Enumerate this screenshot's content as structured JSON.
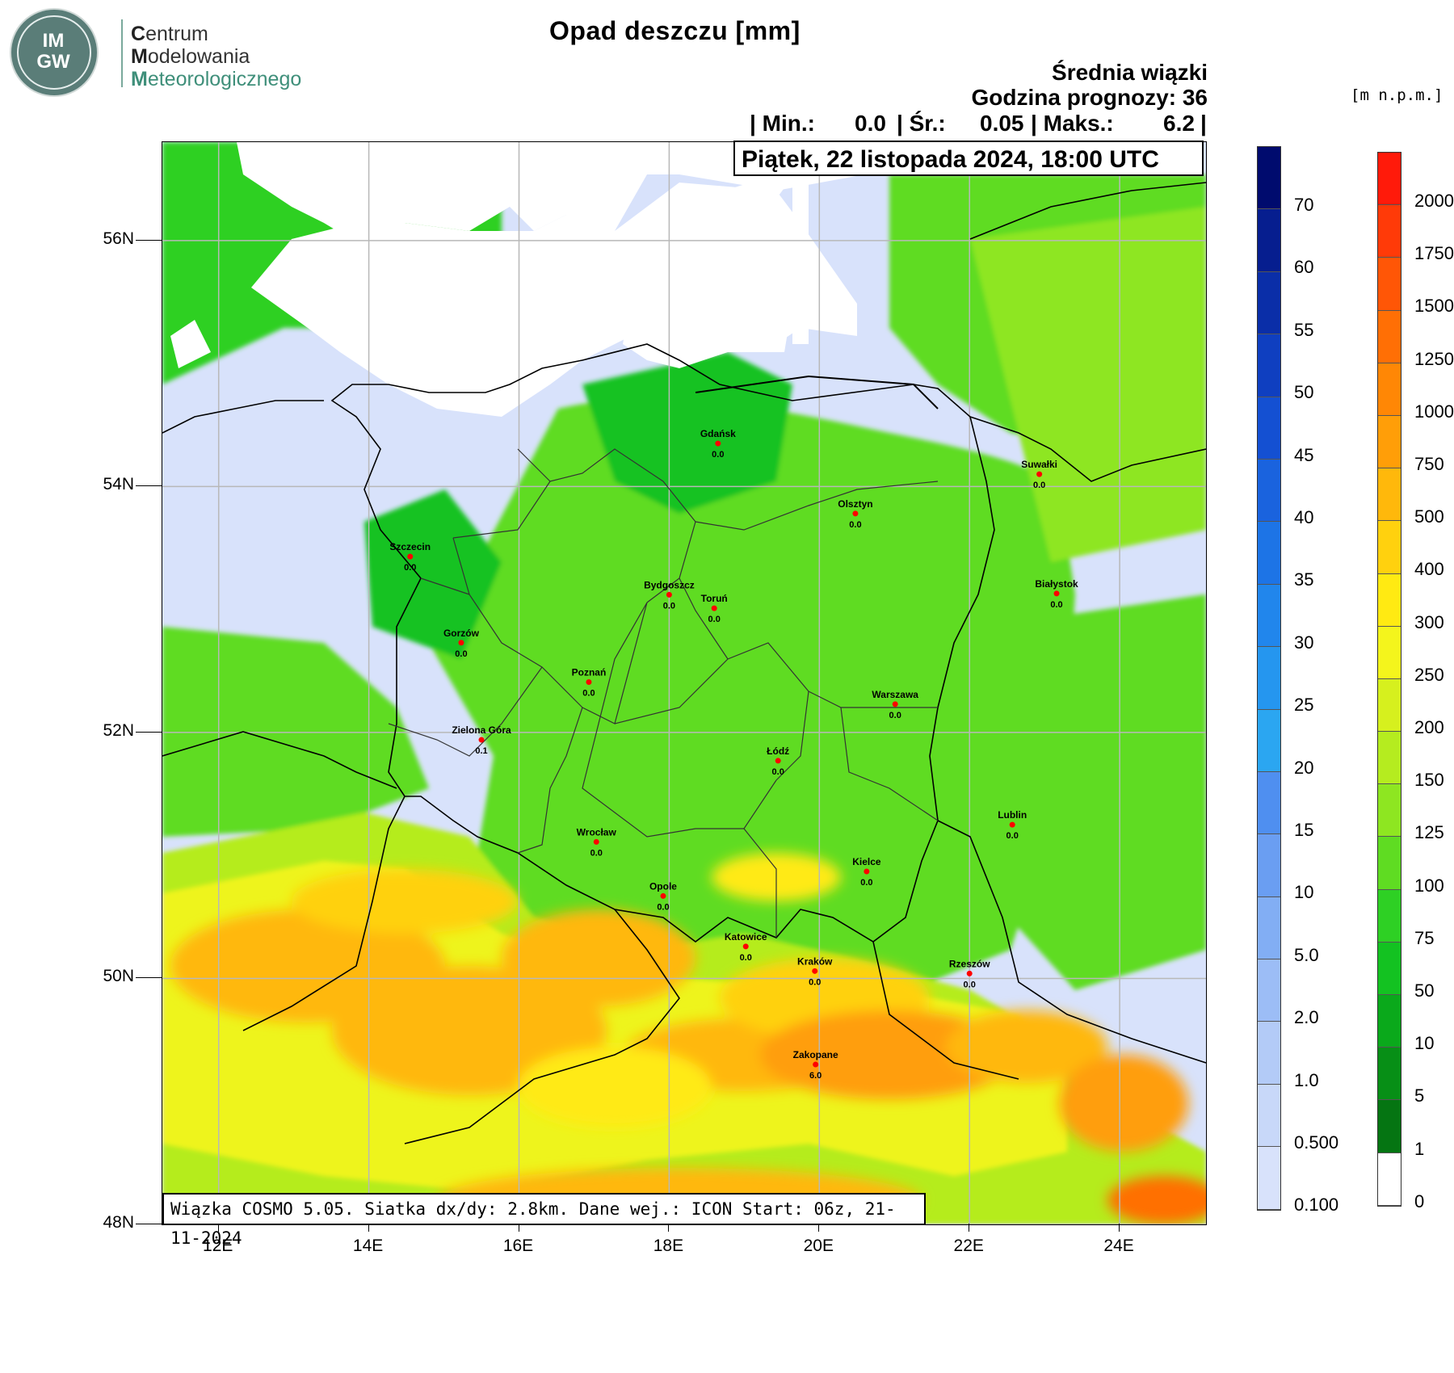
{
  "header": {
    "title": "Opad deszczu [mm]",
    "ensemble": "Średnia wiązki",
    "lead_time": "Godzina prognozy: 36",
    "stats": {
      "min_label": "| Min.:",
      "min_value": "0.0",
      "mean_label": "| Śr.:",
      "mean_value": "0.05",
      "max_label": "| Maks.:",
      "max_value": "6.2",
      "end": "|"
    },
    "valid_time": "Piątek, 22 listopada 2024, 18:00 UTC"
  },
  "logo": {
    "monogram": [
      "IM",
      "GW"
    ],
    "org_line1_initial": "C",
    "org_line1_rest": "entrum",
    "org_line2_initial": "M",
    "org_line2_rest": "odelowania",
    "org_line3_initial": "M",
    "org_line3_rest": "eteorologicznego"
  },
  "footer": {
    "model_info": "Wiązka COSMO 5.05. Siatka dx/dy: 2.8km. Dane wej.: ICON Start: 06z, 21-11-2024"
  },
  "axes": {
    "lat_labels": [
      "56N",
      "54N",
      "52N",
      "50N",
      "48N"
    ],
    "lat_values": [
      56,
      54,
      52,
      50,
      48
    ],
    "lon_labels": [
      "12E",
      "14E",
      "16E",
      "18E",
      "20E",
      "22E",
      "24E"
    ],
    "lon_values": [
      12,
      14,
      16,
      18,
      20,
      22,
      24
    ],
    "lat_range": [
      48,
      56.8
    ],
    "lon_range": [
      11.25,
      25.15
    ]
  },
  "cities": [
    {
      "name": "Gdańsk",
      "value": "0.0",
      "lon": 18.65,
      "lat": 54.35
    },
    {
      "name": "Suwałki",
      "value": "0.0",
      "lon": 22.93,
      "lat": 54.1
    },
    {
      "name": "Olsztyn",
      "value": "0.0",
      "lon": 20.48,
      "lat": 53.78
    },
    {
      "name": "Szczecin",
      "value": "0.0",
      "lon": 14.55,
      "lat": 53.43
    },
    {
      "name": "Bydgoszcz",
      "value": "0.0",
      "lon": 18.0,
      "lat": 53.12
    },
    {
      "name": "Toruń",
      "value": "0.0",
      "lon": 18.6,
      "lat": 53.01
    },
    {
      "name": "Białystok",
      "value": "0.0",
      "lon": 23.16,
      "lat": 53.13
    },
    {
      "name": "Gorzów",
      "value": "0.0",
      "lon": 15.23,
      "lat": 52.73
    },
    {
      "name": "Poznań",
      "value": "0.0",
      "lon": 16.93,
      "lat": 52.41
    },
    {
      "name": "Warszawa",
      "value": "0.0",
      "lon": 21.01,
      "lat": 52.23
    },
    {
      "name": "Zielona Góra",
      "value": "0.1",
      "lon": 15.5,
      "lat": 51.94
    },
    {
      "name": "Łódź",
      "value": "0.0",
      "lon": 19.45,
      "lat": 51.77
    },
    {
      "name": "Lublin",
      "value": "0.0",
      "lon": 22.57,
      "lat": 51.25
    },
    {
      "name": "Wrocław",
      "value": "0.0",
      "lon": 17.03,
      "lat": 51.11
    },
    {
      "name": "Kielce",
      "value": "0.0",
      "lon": 20.63,
      "lat": 50.87
    },
    {
      "name": "Opole",
      "value": "0.0",
      "lon": 17.92,
      "lat": 50.67
    },
    {
      "name": "Katowice",
      "value": "0.0",
      "lon": 19.02,
      "lat": 50.26
    },
    {
      "name": "Kraków",
      "value": "0.0",
      "lon": 19.94,
      "lat": 50.06
    },
    {
      "name": "Rzeszów",
      "value": "0.0",
      "lon": 22.0,
      "lat": 50.04
    },
    {
      "name": "Zakopane",
      "value": "6.0",
      "lon": 19.95,
      "lat": 49.3
    }
  ],
  "precip_colorbar": {
    "labels": [
      "70",
      "60",
      "55",
      "50",
      "45",
      "40",
      "35",
      "30",
      "25",
      "20",
      "15",
      "10",
      "5.0",
      "2.0",
      "1.0",
      "0.500",
      "0.100"
    ],
    "colors": [
      "#000b6e",
      "#061e8f",
      "#0a2ea8",
      "#0f3fc0",
      "#1450d2",
      "#1a63de",
      "#1d74e6",
      "#2186ec",
      "#2596ef",
      "#2ba6f1",
      "#4f8ff0",
      "#6a9ef2",
      "#82aef4",
      "#9cbdf6",
      "#b3cbf7",
      "#c8d8f9",
      "#d8e2fb"
    ]
  },
  "elev_colorbar": {
    "unit": "[m n.p.m.]",
    "labels": [
      "2000",
      "1750",
      "1500",
      "1250",
      "1000",
      "750",
      "500",
      "400",
      "300",
      "250",
      "200",
      "150",
      "125",
      "100",
      "75",
      "50",
      "10",
      "5",
      "1",
      "0"
    ],
    "colors": [
      "#ff1a0a",
      "#ff3a08",
      "#ff5606",
      "#ff6f05",
      "#ff8705",
      "#ff9e08",
      "#ffb80b",
      "#ffd10e",
      "#ffea12",
      "#f4f51c",
      "#d6f01e",
      "#b5ec1f",
      "#8ee621",
      "#5fdc22",
      "#2ed024",
      "#13c221",
      "#0aa91b",
      "#078f16",
      "#057512",
      "#ffffff"
    ]
  }
}
